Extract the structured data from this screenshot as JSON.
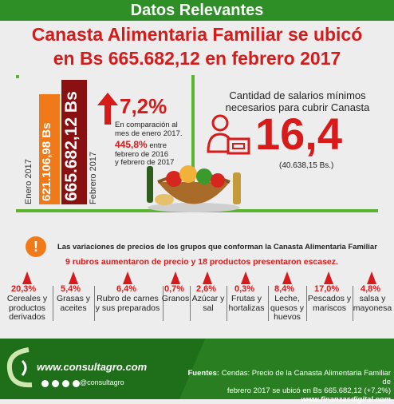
{
  "header": {
    "title": "Datos Relevantes"
  },
  "headline": {
    "line1": "Canasta Alimentaria Familiar se ubicó",
    "line2": "en Bs 665.682,12 en febrero 2017"
  },
  "bars": {
    "jan_value": "621.106,98 Bs",
    "jan_label": "Enero 2017",
    "feb_value": "665.682,12 Bs",
    "feb_label": "Febrero 2017"
  },
  "monthly_change": {
    "pct": "7,2%",
    "desc": "En comparación al mes de enero 2017.",
    "yoy_pct": "445,8%",
    "yoy_desc1": "entre",
    "yoy_desc2": "febrero de 2016",
    "yoy_desc3": "y febrero de 2017"
  },
  "wages": {
    "title_line1": "Cantidad de salarios mínimos",
    "title_line2": "necesarios para cubrir Canasta",
    "value": "16,4",
    "sub": "(40.638,15 Bs.)"
  },
  "notice": {
    "line1": "Las variaciones de precios de los grupos que conforman la Canasta Alimentaria Familiar",
    "line2": "9 rubros aumentaron de precio y 18 productos presentaron escasez."
  },
  "categories": [
    {
      "pct": "20,3%",
      "name": "Cereales y productos derivados"
    },
    {
      "pct": "5,4%",
      "name": "Grasas y aceites"
    },
    {
      "pct": "6,4%",
      "name": "Rubro de carnes y sus preparados"
    },
    {
      "pct": "0,7%",
      "name": "Granos"
    },
    {
      "pct": "2,6%",
      "name": "Azúcar y sal"
    },
    {
      "pct": "0,3%",
      "name": "Frutas y hortalizas"
    },
    {
      "pct": "8,4%",
      "name": "Leche, quesos y huevos"
    },
    {
      "pct": "17,0%",
      "name": "Pescados y mariscos"
    },
    {
      "pct": "4,8%",
      "name": "salsa y mayonesa"
    }
  ],
  "footer": {
    "site": "www.consultagro.com",
    "handle": "@consultagro",
    "sources_label": "Fuentes:",
    "sources_text1": "Cendas: Precio de la Canasta Alimentaria Familiar de",
    "sources_text2": "febrero 2017 se ubicó en Bs 665.682,12 (+7,2%)",
    "sources_site": "www.finanzasdigital.com"
  },
  "colors": {
    "green": "#2f8f27",
    "red": "#d71a1a",
    "orange": "#f07a1a",
    "darkred": "#8a1111"
  }
}
